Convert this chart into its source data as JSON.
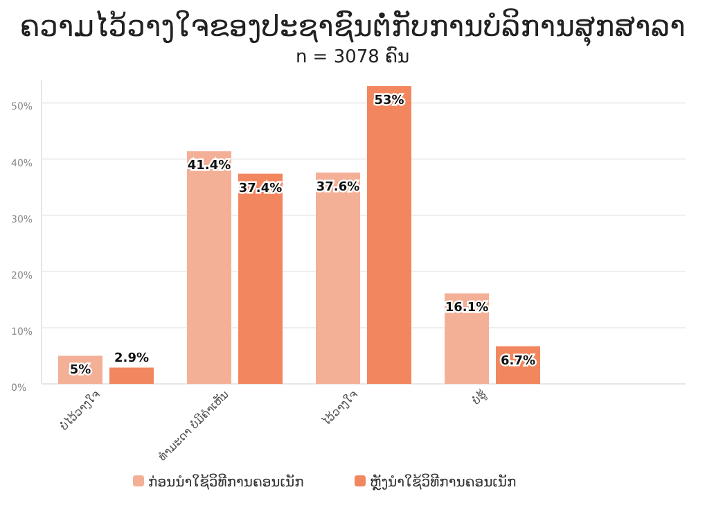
{
  "chart_data": {
    "type": "bar",
    "title": "ຄວາມໄວ້ວາງໃຈຂອງປະຊາຊົນຕໍ່ກັບການບໍລິການສຸກສາລາ",
    "subtitle": "n = 3078 ຄົນ",
    "categories": [
      "ບໍ່ໄວ້ວາງໃຈ",
      "ທຳມະດາ ບໍ່ມີຄຳເຫັນ",
      "ໄວ້ວາງໃຈ",
      "ບໍ່ຮູ້"
    ],
    "series": [
      {
        "name": "ກ່ອນນຳໃຊ້ວິທີການຄອນເນັກ",
        "color": "#f4b096",
        "values": [
          5,
          41.4,
          37.6,
          16.1
        ],
        "value_labels": [
          "5%",
          "41.4%",
          "37.6%",
          "16.1%"
        ]
      },
      {
        "name": "ຫຼັງນຳໃຊ້ວິທີການຄອນເນັກ",
        "color": "#f2875f",
        "values": [
          2.9,
          37.4,
          53,
          6.7
        ],
        "value_labels": [
          "2.9%",
          "37.4%",
          "53%",
          "6.7%"
        ]
      }
    ],
    "ylim": [
      0,
      54
    ],
    "yticks": [
      {
        "value": 0,
        "label": "0%"
      },
      {
        "value": 10,
        "label": "10%"
      },
      {
        "value": 20,
        "label": "20%"
      },
      {
        "value": 30,
        "label": "30%"
      },
      {
        "value": 40,
        "label": "40%"
      },
      {
        "value": 50,
        "label": "50%"
      }
    ],
    "grid": "y",
    "legend": "bottom"
  }
}
